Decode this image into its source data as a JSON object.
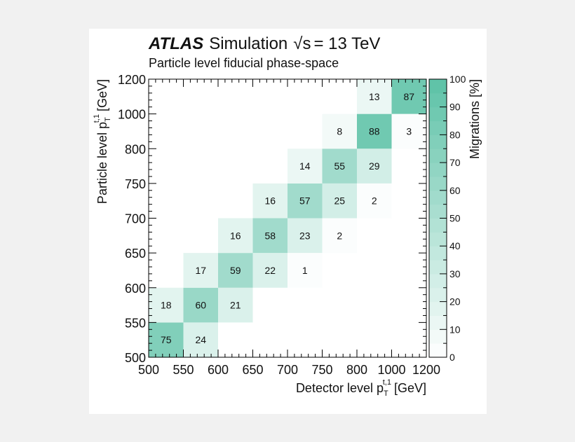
{
  "figure": {
    "experiment": "ATLAS",
    "label": "Simulation",
    "energy_sqrt": "√s",
    "energy_value": "= 13 TeV",
    "subtitle": "Particle level fiducial phase-space"
  },
  "chart_data": {
    "type": "heatmap",
    "xlabel": "Detector level p",
    "ylabel": "Particle level p",
    "label_sub": "T",
    "label_sup": "t,1",
    "label_unit": "[GeV]",
    "x_edges": [
      500,
      550,
      600,
      650,
      700,
      750,
      800,
      1000,
      1200
    ],
    "y_edges": [
      500,
      550,
      600,
      650,
      700,
      750,
      800,
      1000,
      1200
    ],
    "x_tick_labels": [
      "500",
      "550",
      "600",
      "650",
      "700",
      "750",
      "800",
      "1000",
      "1200"
    ],
    "y_tick_labels": [
      "500",
      "550",
      "600",
      "650",
      "700",
      "750",
      "800",
      "1000",
      "1200"
    ],
    "cells": [
      {
        "x": 0,
        "y": 0,
        "value": 75
      },
      {
        "x": 1,
        "y": 0,
        "value": 24
      },
      {
        "x": 0,
        "y": 1,
        "value": 18
      },
      {
        "x": 1,
        "y": 1,
        "value": 60
      },
      {
        "x": 2,
        "y": 1,
        "value": 21
      },
      {
        "x": 1,
        "y": 2,
        "value": 17
      },
      {
        "x": 2,
        "y": 2,
        "value": 59
      },
      {
        "x": 3,
        "y": 2,
        "value": 22
      },
      {
        "x": 4,
        "y": 2,
        "value": 1
      },
      {
        "x": 2,
        "y": 3,
        "value": 16
      },
      {
        "x": 3,
        "y": 3,
        "value": 58
      },
      {
        "x": 4,
        "y": 3,
        "value": 23
      },
      {
        "x": 5,
        "y": 3,
        "value": 2
      },
      {
        "x": 3,
        "y": 4,
        "value": 16
      },
      {
        "x": 4,
        "y": 4,
        "value": 57
      },
      {
        "x": 5,
        "y": 4,
        "value": 25
      },
      {
        "x": 6,
        "y": 4,
        "value": 2
      },
      {
        "x": 4,
        "y": 5,
        "value": 14
      },
      {
        "x": 5,
        "y": 5,
        "value": 55
      },
      {
        "x": 6,
        "y": 5,
        "value": 29
      },
      {
        "x": 5,
        "y": 6,
        "value": 8
      },
      {
        "x": 6,
        "y": 6,
        "value": 88
      },
      {
        "x": 7,
        "y": 6,
        "value": 3
      },
      {
        "x": 6,
        "y": 7,
        "value": 13
      },
      {
        "x": 7,
        "y": 7,
        "value": 87
      }
    ],
    "colorbar": {
      "label": "Migrations [%]",
      "range": [
        0,
        100
      ],
      "ticks": [
        0,
        10,
        20,
        30,
        40,
        50,
        60,
        70,
        80,
        90,
        100
      ],
      "low_color": "#ffffff",
      "high_color": "#5cc1a6"
    }
  }
}
